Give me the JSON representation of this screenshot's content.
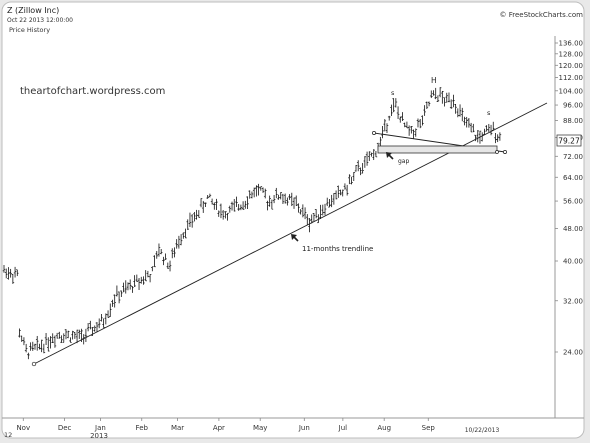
{
  "header": {
    "symbol": "Z (Zillow Inc)",
    "datetime": "Oct 22 2013 12:00:00",
    "panel_label": "Price History",
    "source": "© FreeStockCharts.com"
  },
  "watermark": "theartofchart.wordpress.com",
  "price_box": "79.27",
  "corner_label": "12",
  "chart_data": {
    "type": "bar",
    "scale": "log",
    "ylim": [
      20,
      140
    ],
    "yticks": [
      "136.00",
      "128.00",
      "120.00",
      "112.00",
      "104.00",
      "96.00",
      "88.00",
      "80.00",
      "72.00",
      "64.00",
      "56.00",
      "48.00",
      "40.00",
      "32.00",
      "24.00"
    ],
    "ytick_values": [
      136,
      128,
      120,
      112,
      104,
      96,
      88,
      80,
      72,
      64,
      56,
      48,
      40,
      32,
      24
    ],
    "months": [
      "Nov",
      "Dec",
      "Jan",
      "Feb",
      "Mar",
      "Apr",
      "May",
      "Jun",
      "Jul",
      "Aug",
      "Sep"
    ],
    "month_fractions": [
      0.035,
      0.11,
      0.175,
      0.25,
      0.315,
      0.39,
      0.465,
      0.545,
      0.615,
      0.69,
      0.77
    ],
    "year_label": "2013",
    "date_label": "10/22/2013",
    "series_anchors": [
      [
        0.0,
        38.0
      ],
      [
        0.025,
        37.0
      ],
      [
        0.028,
        27.0
      ],
      [
        0.04,
        24.0
      ],
      [
        0.06,
        24.6
      ],
      [
        0.1,
        26.6
      ],
      [
        0.14,
        26.0
      ],
      [
        0.18,
        28.5
      ],
      [
        0.2,
        32.5
      ],
      [
        0.24,
        35.5
      ],
      [
        0.27,
        37.5
      ],
      [
        0.28,
        43.0
      ],
      [
        0.3,
        39.0
      ],
      [
        0.32,
        46.0
      ],
      [
        0.35,
        52.0
      ],
      [
        0.37,
        57.0
      ],
      [
        0.4,
        52.0
      ],
      [
        0.43,
        55.0
      ],
      [
        0.46,
        60.0
      ],
      [
        0.48,
        56.0
      ],
      [
        0.5,
        58.0
      ],
      [
        0.53,
        55.0
      ],
      [
        0.555,
        50.0
      ],
      [
        0.58,
        54.0
      ],
      [
        0.6,
        57.0
      ],
      [
        0.62,
        60.0
      ],
      [
        0.64,
        66.0
      ],
      [
        0.66,
        70.0
      ],
      [
        0.68,
        76.0
      ],
      [
        0.7,
        92.0
      ],
      [
        0.71,
        96.0
      ],
      [
        0.725,
        86.0
      ],
      [
        0.74,
        82.0
      ],
      [
        0.76,
        88.0
      ],
      [
        0.775,
        100.0
      ],
      [
        0.79,
        102.0
      ],
      [
        0.8,
        98.0
      ],
      [
        0.815,
        100.0
      ],
      [
        0.83,
        90.0
      ],
      [
        0.845,
        84.0
      ],
      [
        0.86,
        80.0
      ],
      [
        0.875,
        82.0
      ],
      [
        0.89,
        84.0
      ],
      [
        0.9,
        79.27
      ]
    ],
    "annotations": {
      "shoulder_left": "s",
      "head": "H",
      "shoulder_right": "s",
      "gap": "gap",
      "trendline": "11-months trendline"
    }
  }
}
